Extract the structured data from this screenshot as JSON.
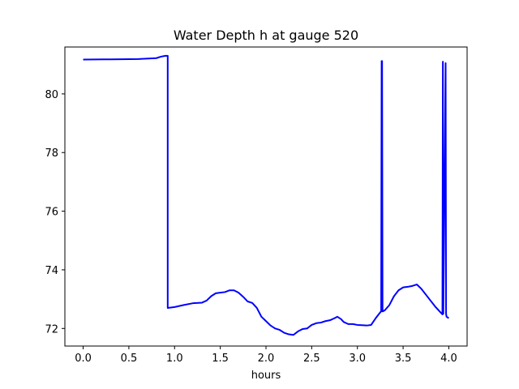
{
  "chart_data": {
    "type": "line",
    "title": "Water Depth h at gauge 520",
    "xlabel": "hours",
    "ylabel": "",
    "xlim": [
      -0.2,
      4.2
    ],
    "ylim": [
      71.4,
      81.6
    ],
    "xticks": [
      0.0,
      0.5,
      1.0,
      1.5,
      2.0,
      2.5,
      3.0,
      3.5,
      4.0
    ],
    "xtick_labels": [
      "0.0",
      "0.5",
      "1.0",
      "1.5",
      "2.0",
      "2.5",
      "3.0",
      "3.5",
      "4.0"
    ],
    "yticks": [
      72,
      74,
      76,
      78,
      80
    ],
    "ytick_labels": [
      "72",
      "74",
      "76",
      "78",
      "80"
    ],
    "grid": false,
    "legend": "none",
    "series": [
      {
        "color": "#0000ff",
        "x": [
          0.0,
          0.3,
          0.6,
          0.8,
          0.85,
          0.9,
          0.925,
          0.925,
          1.0,
          1.1,
          1.2,
          1.3,
          1.35,
          1.4,
          1.45,
          1.5,
          1.55,
          1.6,
          1.65,
          1.7,
          1.75,
          1.8,
          1.85,
          1.9,
          1.95,
          2.0,
          2.05,
          2.1,
          2.15,
          2.2,
          2.25,
          2.3,
          2.35,
          2.4,
          2.45,
          2.5,
          2.55,
          2.6,
          2.65,
          2.7,
          2.75,
          2.78,
          2.82,
          2.85,
          2.9,
          2.95,
          3.0,
          3.05,
          3.1,
          3.15,
          3.2,
          3.25,
          3.26,
          3.265,
          3.27,
          3.275,
          3.3,
          3.35,
          3.4,
          3.45,
          3.5,
          3.55,
          3.6,
          3.65,
          3.7,
          3.75,
          3.8,
          3.85,
          3.9,
          3.93,
          3.935,
          3.94,
          3.965,
          3.97,
          3.975,
          4.0
        ],
        "y": [
          81.17,
          81.18,
          81.19,
          81.22,
          81.27,
          81.3,
          81.3,
          72.7,
          72.73,
          72.8,
          72.86,
          72.88,
          72.95,
          73.1,
          73.2,
          73.22,
          73.24,
          73.3,
          73.3,
          73.22,
          73.08,
          72.92,
          72.87,
          72.7,
          72.4,
          72.25,
          72.1,
          72.0,
          71.95,
          71.85,
          71.8,
          71.78,
          71.9,
          71.98,
          72.0,
          72.12,
          72.18,
          72.2,
          72.25,
          72.28,
          72.35,
          72.4,
          72.32,
          72.22,
          72.15,
          72.15,
          72.12,
          72.11,
          72.1,
          72.12,
          72.35,
          72.55,
          72.58,
          81.12,
          81.12,
          72.58,
          72.62,
          72.8,
          73.1,
          73.3,
          73.4,
          73.42,
          73.45,
          73.5,
          73.35,
          73.15,
          72.95,
          72.75,
          72.58,
          72.48,
          81.1,
          72.5,
          81.05,
          72.5,
          72.4,
          72.35
        ]
      }
    ]
  }
}
